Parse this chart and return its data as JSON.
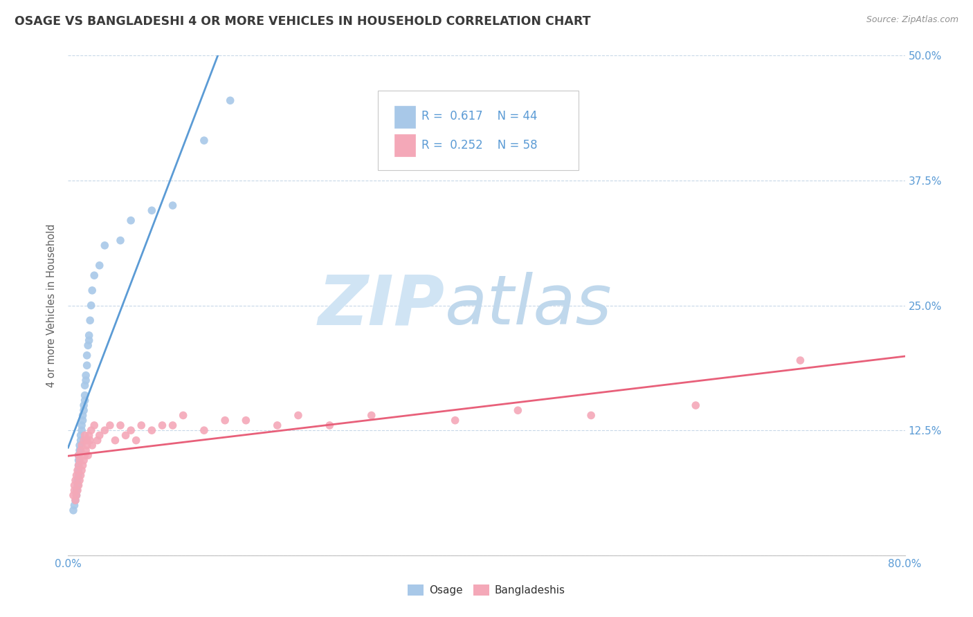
{
  "title": "OSAGE VS BANGLADESHI 4 OR MORE VEHICLES IN HOUSEHOLD CORRELATION CHART",
  "source_text": "Source: ZipAtlas.com",
  "ylabel": "4 or more Vehicles in Household",
  "xlim": [
    0.0,
    0.8
  ],
  "ylim": [
    0.0,
    0.5
  ],
  "xticks": [
    0.0,
    0.1,
    0.2,
    0.3,
    0.4,
    0.5,
    0.6,
    0.7,
    0.8
  ],
  "yticks": [
    0.0,
    0.125,
    0.25,
    0.375,
    0.5
  ],
  "legend_r1": "0.617",
  "legend_n1": "44",
  "legend_r2": "0.252",
  "legend_n2": "58",
  "osage_color": "#a8c8e8",
  "bangladeshi_color": "#f4a8b8",
  "regression_color_osage": "#5b9bd5",
  "regression_color_bangladeshi": "#e8607a",
  "watermark_zip": "ZIP",
  "watermark_atlas": "atlas",
  "watermark_color_zip": "#d0e4f4",
  "watermark_color_atlas": "#c0d8ec",
  "background_color": "#ffffff",
  "title_color": "#3a3a3a",
  "source_color": "#909090",
  "tick_color": "#5b9bd5",
  "osage_scatter_x": [
    0.005,
    0.006,
    0.007,
    0.008,
    0.008,
    0.009,
    0.009,
    0.01,
    0.01,
    0.01,
    0.01,
    0.01,
    0.011,
    0.011,
    0.012,
    0.012,
    0.013,
    0.013,
    0.014,
    0.014,
    0.015,
    0.015,
    0.016,
    0.016,
    0.016,
    0.017,
    0.017,
    0.018,
    0.018,
    0.019,
    0.02,
    0.02,
    0.021,
    0.022,
    0.023,
    0.025,
    0.03,
    0.035,
    0.05,
    0.06,
    0.08,
    0.1,
    0.13,
    0.155
  ],
  "osage_scatter_y": [
    0.045,
    0.05,
    0.055,
    0.06,
    0.065,
    0.07,
    0.075,
    0.08,
    0.085,
    0.09,
    0.095,
    0.1,
    0.105,
    0.11,
    0.115,
    0.12,
    0.125,
    0.13,
    0.135,
    0.14,
    0.145,
    0.15,
    0.155,
    0.16,
    0.17,
    0.175,
    0.18,
    0.19,
    0.2,
    0.21,
    0.215,
    0.22,
    0.235,
    0.25,
    0.265,
    0.28,
    0.29,
    0.31,
    0.315,
    0.335,
    0.345,
    0.35,
    0.415,
    0.455
  ],
  "bangladeshi_scatter_x": [
    0.005,
    0.006,
    0.006,
    0.007,
    0.007,
    0.008,
    0.008,
    0.009,
    0.009,
    0.01,
    0.01,
    0.01,
    0.011,
    0.011,
    0.012,
    0.012,
    0.013,
    0.013,
    0.014,
    0.015,
    0.015,
    0.016,
    0.016,
    0.017,
    0.018,
    0.018,
    0.019,
    0.02,
    0.021,
    0.022,
    0.023,
    0.025,
    0.028,
    0.03,
    0.035,
    0.04,
    0.045,
    0.05,
    0.055,
    0.06,
    0.065,
    0.07,
    0.08,
    0.09,
    0.1,
    0.11,
    0.13,
    0.15,
    0.17,
    0.2,
    0.22,
    0.25,
    0.29,
    0.37,
    0.43,
    0.5,
    0.6,
    0.7
  ],
  "bangladeshi_scatter_y": [
    0.06,
    0.065,
    0.07,
    0.055,
    0.075,
    0.06,
    0.08,
    0.065,
    0.085,
    0.07,
    0.09,
    0.1,
    0.075,
    0.095,
    0.08,
    0.105,
    0.085,
    0.11,
    0.09,
    0.095,
    0.115,
    0.1,
    0.12,
    0.105,
    0.11,
    0.115,
    0.1,
    0.12,
    0.115,
    0.125,
    0.11,
    0.13,
    0.115,
    0.12,
    0.125,
    0.13,
    0.115,
    0.13,
    0.12,
    0.125,
    0.115,
    0.13,
    0.125,
    0.13,
    0.13,
    0.14,
    0.125,
    0.135,
    0.135,
    0.13,
    0.14,
    0.13,
    0.14,
    0.135,
    0.145,
    0.14,
    0.15,
    0.195
  ]
}
